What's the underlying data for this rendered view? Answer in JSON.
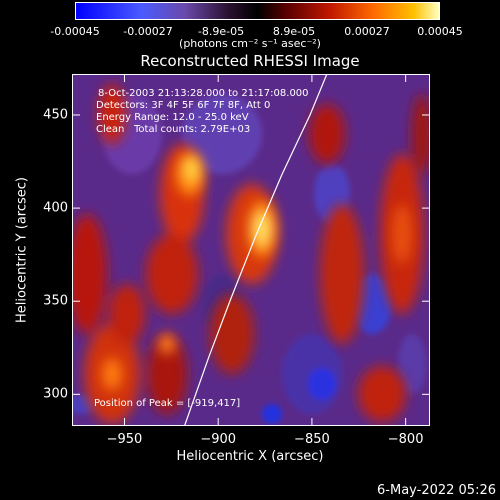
{
  "chart_data": {
    "type": "heatmap",
    "title": "Reconstructed RHESSI Image",
    "xlabel": "Heliocentric X (arcsec)",
    "ylabel": "Heliocentric Y (arcsec)",
    "xlim": [
      -978,
      -787
    ],
    "ylim": [
      283,
      472
    ],
    "xticks": [
      -950,
      -900,
      -850,
      -800
    ],
    "yticks": [
      300,
      350,
      400,
      450
    ],
    "colorbar": {
      "unit_label": "(photons cm⁻² s⁻¹ asec⁻²)",
      "ticks": [
        "-0.00045",
        "-0.00027",
        "-8.9e-05",
        "8.9e-05",
        "0.00027",
        "0.00045"
      ],
      "range": [
        -0.00045,
        0.00045
      ]
    },
    "annotations": {
      "time": "8-Oct-2003 21:13:28.000 to 21:17:08.000",
      "detectors": "Detectors: 3F 4F 5F 6F 7F 8F, Att 0",
      "energy": "Energy Range: 12.0 - 25.0 keV",
      "method": "Clean",
      "counts": "Total counts: 2.79E+03",
      "peak": "Position of Peak = [-919,417]"
    },
    "peak_position": [
      -919,
      417
    ],
    "limb_curve": [
      [
        -918,
        283
      ],
      [
        -905,
        320
      ],
      [
        -893,
        352
      ],
      [
        -880,
        385
      ],
      [
        -866,
        418
      ],
      [
        -851,
        450
      ],
      [
        -842,
        472
      ]
    ]
  },
  "footer": {
    "date": "6-May-2022 05:26"
  },
  "colors": {
    "background": "#000000",
    "foreground": "#ffffff",
    "colormap": [
      "#0000ff",
      "#3355ff",
      "#6644cc",
      "#7a3a9a",
      "#3a1a4a",
      "#1a0000",
      "#660000",
      "#aa1000",
      "#dd3300",
      "#ff7000",
      "#ffb000",
      "#ffee60",
      "#ffffff"
    ]
  }
}
